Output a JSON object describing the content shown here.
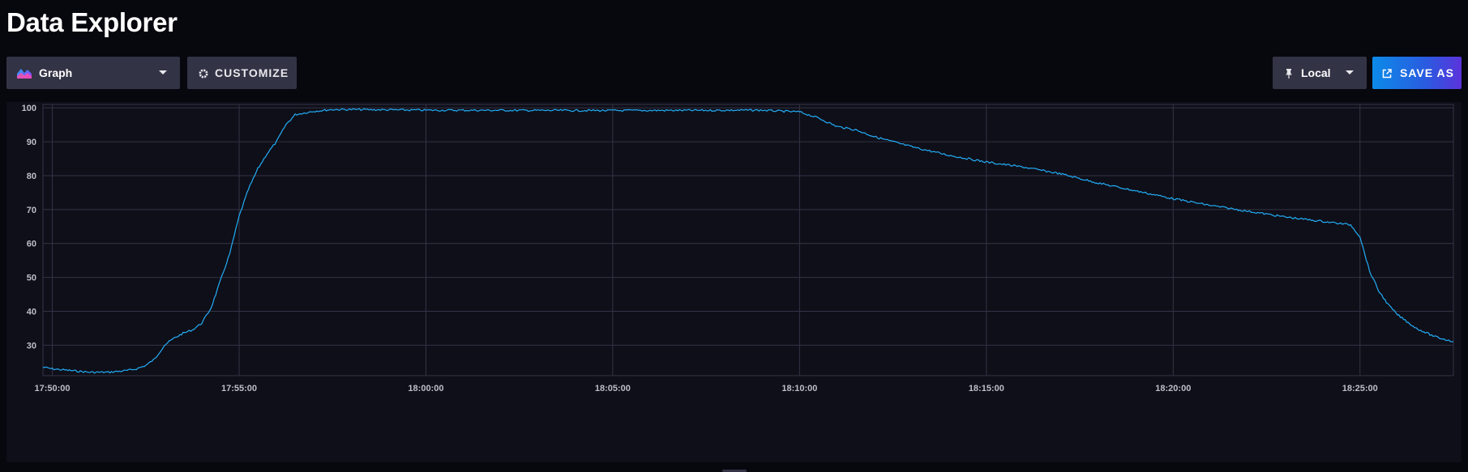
{
  "page": {
    "title": "Data Explorer"
  },
  "toolbar": {
    "visualization": {
      "label": "Graph",
      "icon": "graph-icon"
    },
    "customize": {
      "label": "CUSTOMIZE",
      "icon": "gear-icon"
    },
    "timezone": {
      "label": "Local",
      "icon": "pin-icon"
    },
    "save_as": {
      "label": "SAVE AS",
      "icon": "external-link-icon"
    }
  },
  "colors": {
    "background": "#07070e",
    "panel": "#0f0f19",
    "button": "#333346",
    "line": "#22adf6",
    "grid": "#333346",
    "save_gradient": [
      "#0c8be8",
      "#5b33db"
    ]
  },
  "chart_data": {
    "type": "line",
    "title": "",
    "xlabel": "",
    "ylabel": "",
    "ylim": [
      21,
      101
    ],
    "xlim": [
      "17:49:45",
      "18:27:30"
    ],
    "yticks": [
      30,
      40,
      50,
      60,
      70,
      80,
      90,
      100
    ],
    "xticks": [
      "17:50:00",
      "17:55:00",
      "18:00:00",
      "18:05:00",
      "18:10:00",
      "18:15:00",
      "18:20:00",
      "18:25:00"
    ],
    "grid": true,
    "legend": "none",
    "series": [
      {
        "x": [
          "17:49:45",
          "17:50:00",
          "17:50:30",
          "17:51:00",
          "17:51:30",
          "17:52:00",
          "17:52:15",
          "17:52:30",
          "17:52:45",
          "17:53:00",
          "17:53:15",
          "17:53:30",
          "17:53:45",
          "17:54:00",
          "17:54:15",
          "17:54:30",
          "17:54:45",
          "17:55:00",
          "17:55:15",
          "17:55:30",
          "17:55:45",
          "17:56:00",
          "17:56:15",
          "17:56:30",
          "17:57:00",
          "17:57:30",
          "17:58:00",
          "18:00:00",
          "18:05:00",
          "18:09:00",
          "18:09:30",
          "18:10:00",
          "18:10:30",
          "18:11:00",
          "18:11:30",
          "18:12:00",
          "18:13:00",
          "18:14:00",
          "18:15:00",
          "18:16:00",
          "18:17:00",
          "18:18:00",
          "18:19:00",
          "18:20:00",
          "18:21:00",
          "18:22:00",
          "18:23:00",
          "18:24:00",
          "18:24:45",
          "18:25:00",
          "18:25:15",
          "18:25:30",
          "18:25:45",
          "18:26:00",
          "18:26:30",
          "18:27:00",
          "18:27:30"
        ],
        "y": [
          23.5,
          23,
          22.5,
          22,
          22,
          22.5,
          23,
          24,
          26,
          30,
          32,
          33.5,
          34.5,
          36.5,
          41,
          49,
          57,
          68,
          76,
          82,
          86.5,
          90,
          95,
          98,
          99,
          99.5,
          99.5,
          99.3,
          99.2,
          99.3,
          99,
          98.8,
          97,
          94.5,
          93.5,
          91.5,
          88.5,
          86,
          84,
          82.5,
          80.5,
          77.8,
          75.5,
          73.2,
          71.2,
          69.5,
          67.8,
          66.5,
          65.5,
          62,
          52,
          46,
          42,
          39,
          35,
          32.5,
          31
        ]
      }
    ]
  }
}
